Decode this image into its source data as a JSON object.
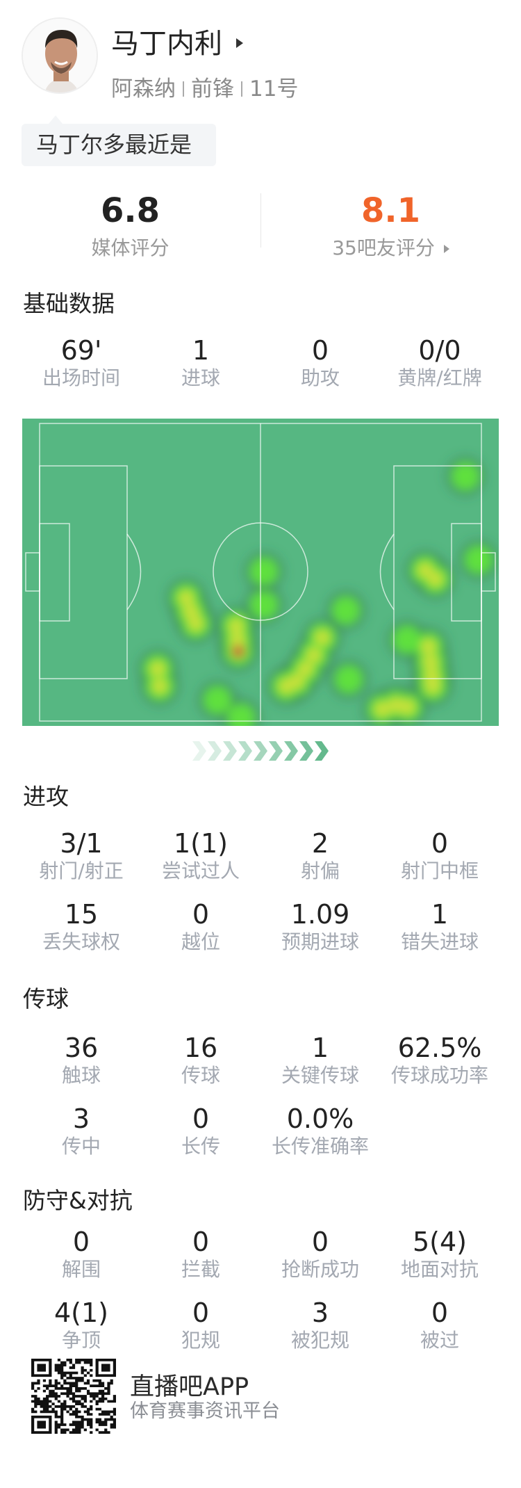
{
  "player": {
    "name": "马丁内利",
    "team": "阿森纳",
    "position": "前锋",
    "number": "11号"
  },
  "bubble": {
    "text": "马丁尔多最近是"
  },
  "ratings": {
    "media": {
      "value": "6.8",
      "label": "媒体评分"
    },
    "fans": {
      "value": "8.1",
      "label": "35吧友评分",
      "color": "#f0642a"
    }
  },
  "sections": {
    "basic": {
      "title": "基础数据",
      "stats": [
        {
          "value": "69'",
          "label": "出场时间"
        },
        {
          "value": "1",
          "label": "进球"
        },
        {
          "value": "0",
          "label": "助攻"
        },
        {
          "value": "0/0",
          "label": "黄牌/红牌"
        }
      ]
    },
    "attack": {
      "title": "进攻",
      "stats": [
        {
          "value": "3/1",
          "label": "射门/射正"
        },
        {
          "value": "1(1)",
          "label": "尝试过人"
        },
        {
          "value": "2",
          "label": "射偏"
        },
        {
          "value": "0",
          "label": "射门中框"
        },
        {
          "value": "15",
          "label": "丢失球权"
        },
        {
          "value": "0",
          "label": "越位"
        },
        {
          "value": "1.09",
          "label": "预期进球"
        },
        {
          "value": "1",
          "label": "错失进球"
        }
      ]
    },
    "passing": {
      "title": "传球",
      "stats": [
        {
          "value": "36",
          "label": "触球"
        },
        {
          "value": "16",
          "label": "传球"
        },
        {
          "value": "1",
          "label": "关键传球"
        },
        {
          "value": "62.5%",
          "label": "传球成功率"
        },
        {
          "value": "3",
          "label": "传中"
        },
        {
          "value": "0",
          "label": "长传"
        },
        {
          "value": "0.0%",
          "label": "长传准确率"
        }
      ]
    },
    "defense": {
      "title": "防守&对抗",
      "stats": [
        {
          "value": "0",
          "label": "解围"
        },
        {
          "value": "0",
          "label": "拦截"
        },
        {
          "value": "0",
          "label": "抢断成功"
        },
        {
          "value": "5(4)",
          "label": "地面对抗"
        },
        {
          "value": "4(1)",
          "label": "争顶"
        },
        {
          "value": "0",
          "label": "犯规"
        },
        {
          "value": "3",
          "label": "被犯规"
        },
        {
          "value": "0",
          "label": "被过"
        }
      ]
    }
  },
  "heatmap": {
    "pitch_color": "#56b782",
    "attack_direction": "right"
  },
  "footer": {
    "app_name": "直播吧APP",
    "tagline": "体育赛事资讯平台"
  }
}
